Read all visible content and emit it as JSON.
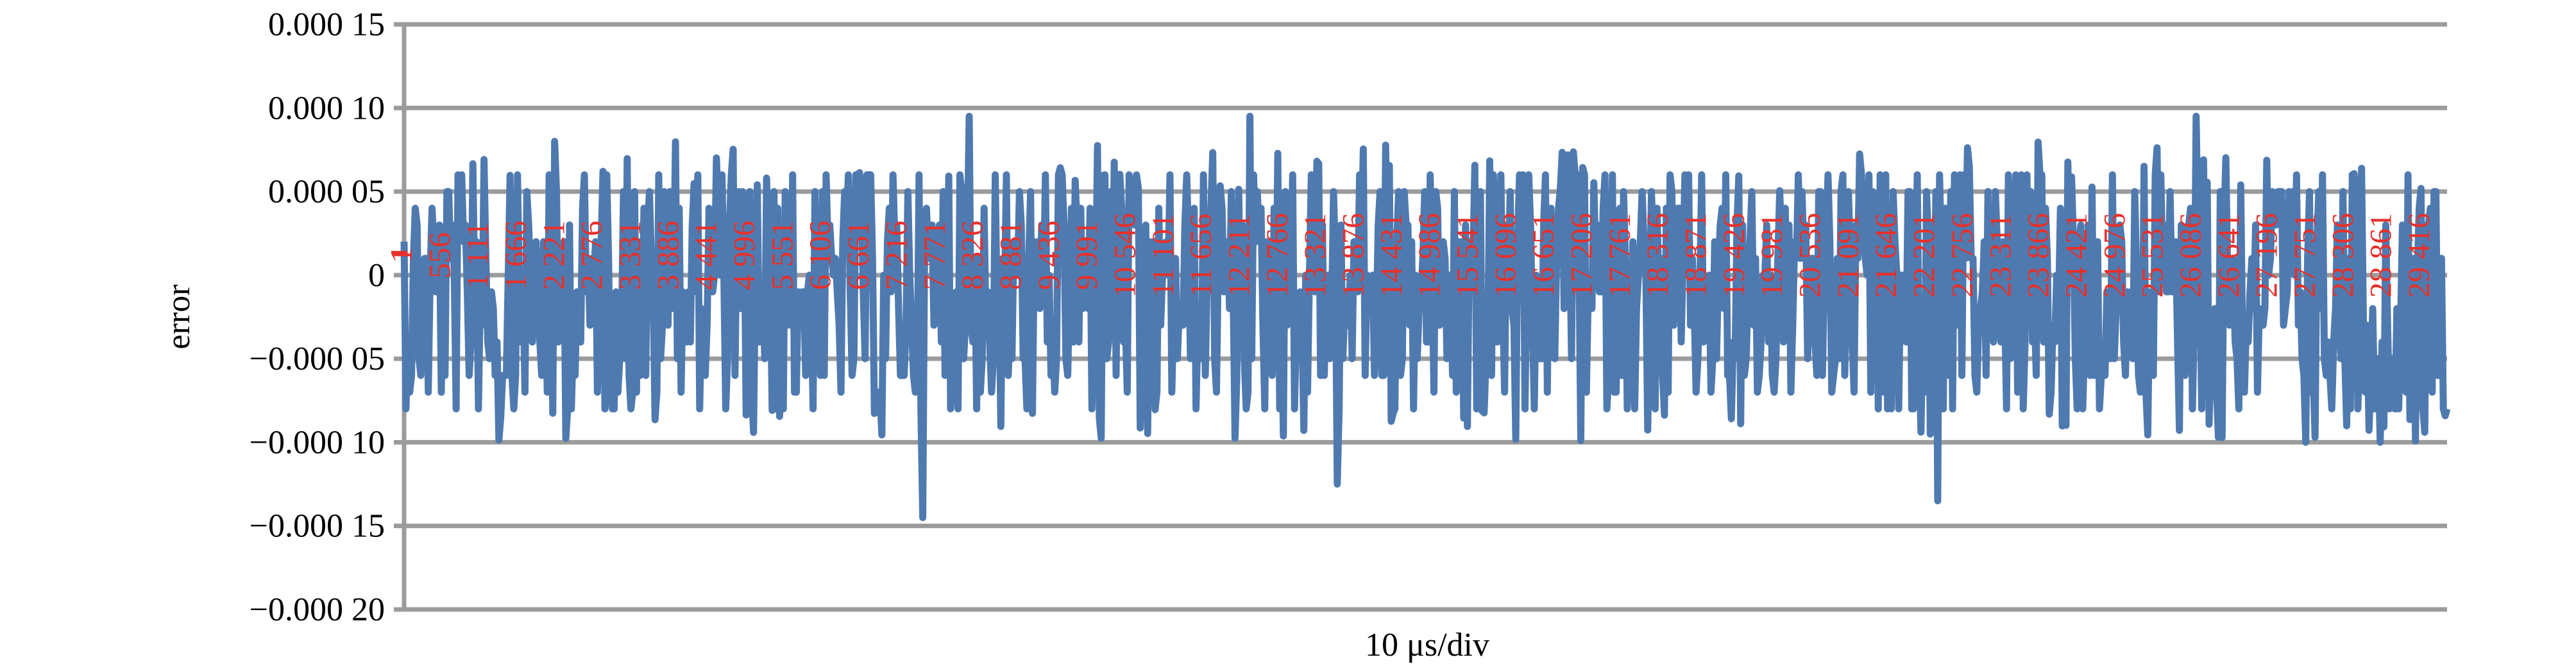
{
  "chart_data": {
    "type": "line",
    "title": "",
    "xlabel": "10 μs/div",
    "ylabel": "error",
    "ylim": [
      -0.0002,
      0.00015
    ],
    "yticks": [
      {
        "value": 0.00015,
        "label": "0.000 15"
      },
      {
        "value": 0.0001,
        "label": "0.000 10"
      },
      {
        "value": 5e-05,
        "label": "0.000 05"
      },
      {
        "value": 0,
        "label": "0"
      },
      {
        "value": -5e-05,
        "label": "−0.000 05"
      },
      {
        "value": -0.0001,
        "label": "−0.000 10"
      },
      {
        "value": -0.00015,
        "label": "−0.000 15"
      },
      {
        "value": -0.0002,
        "label": "−0.000 20"
      }
    ],
    "x_category_labels": [
      "1",
      "556",
      "1 111",
      "1 666",
      "2 221",
      "2 776",
      "3 331",
      "3 886",
      "4 441",
      "4 996",
      "5 551",
      "6 106",
      "6 661",
      "7 216",
      "7 771",
      "8 326",
      "8 881",
      "9 436",
      "9 991",
      "10 546",
      "11 101",
      "11 656",
      "12 211",
      "12 766",
      "13 321",
      "13 876",
      "14 431",
      "14 986",
      "15 541",
      "16 096",
      "16 651",
      "17 206",
      "17 761",
      "18 316",
      "18 871",
      "19 426",
      "19 981",
      "20 536",
      "21 091",
      "21 646",
      "22 201",
      "22 756",
      "23 311",
      "23 866",
      "24 421",
      "24 976",
      "25 531",
      "26 086",
      "26 641",
      "27 196",
      "27 751",
      "28 306",
      "28 861",
      "29 416"
    ],
    "x_range": [
      1,
      29970
    ],
    "grid": true,
    "legend": "none",
    "series_color": "#4f7ab0",
    "label_color": "#e8302a",
    "notable_points": [
      {
        "x": 2200,
        "y": 8e-05
      },
      {
        "x": 7600,
        "y": -0.000145
      },
      {
        "x": 8300,
        "y": 9.5e-05
      },
      {
        "x": 12400,
        "y": 9.5e-05
      },
      {
        "x": 13700,
        "y": -0.000125
      },
      {
        "x": 22500,
        "y": -0.000135
      },
      {
        "x": 26300,
        "y": 9.5e-05
      },
      {
        "x": 27900,
        "y": -0.0001
      },
      {
        "x": 29000,
        "y": -0.0001
      }
    ],
    "series": [
      {
        "values": [
          -5e-05,
          3e-05,
          -8e-05,
          2e-05,
          -4e-05,
          6e-05,
          -7e-05,
          1e-05,
          -3e-05,
          5e-05
        ]
      }
    ]
  }
}
